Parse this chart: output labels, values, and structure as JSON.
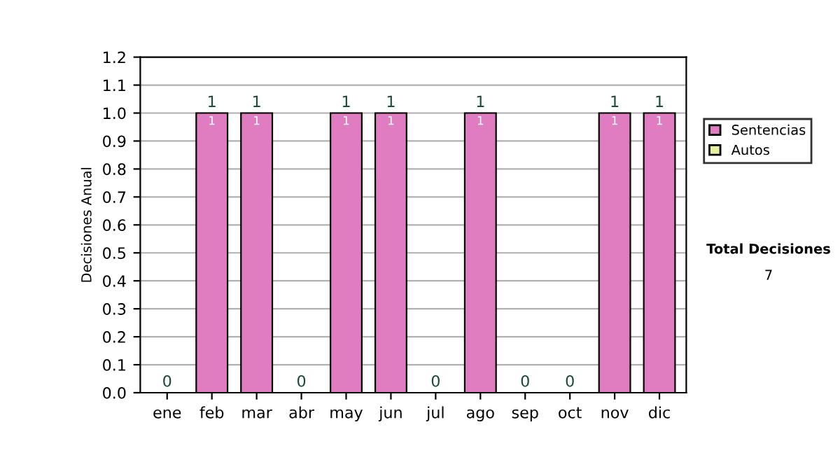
{
  "chart_data": {
    "type": "bar",
    "stacked": true,
    "ylabel": "Decisiones Anual",
    "categories": [
      "ene",
      "feb",
      "mar",
      "abr",
      "may",
      "jun",
      "jul",
      "ago",
      "sep",
      "oct",
      "nov",
      "dic"
    ],
    "series": [
      {
        "name": "Sentencias",
        "color": "#e07cc0",
        "values": [
          0,
          1,
          1,
          0,
          1,
          1,
          0,
          1,
          0,
          0,
          1,
          1
        ],
        "value_labels": [
          null,
          "1",
          "1",
          null,
          "1",
          "1",
          null,
          "1",
          null,
          null,
          "1",
          "1"
        ]
      },
      {
        "name": "Autos",
        "color": "#e8f0a0",
        "values": [
          0,
          0,
          0,
          0,
          0,
          0,
          0,
          0,
          0,
          0,
          0,
          0
        ]
      }
    ],
    "totals": [
      "0",
      "1",
      "1",
      "0",
      "1",
      "1",
      "0",
      "1",
      "0",
      "0",
      "1",
      "1"
    ],
    "ylim": [
      0,
      1.2
    ],
    "yticks": [
      {
        "value": 0,
        "label": "0.0"
      },
      {
        "value": 0.1,
        "label": "0.1"
      },
      {
        "value": 0.2,
        "label": "0.2"
      },
      {
        "value": 0.3,
        "label": "0.3"
      },
      {
        "value": 0.4,
        "label": "0.4"
      },
      {
        "value": 0.5,
        "label": "0.5"
      },
      {
        "value": 0.6,
        "label": "0.6"
      },
      {
        "value": 0.7,
        "label": "0.7"
      },
      {
        "value": 0.8,
        "label": "0.8"
      },
      {
        "value": 0.9,
        "label": "0.9"
      },
      {
        "value": 1.0,
        "label": "1.0"
      },
      {
        "value": 1.1,
        "label": "1.1"
      },
      {
        "value": 1.2,
        "label": "1.2"
      }
    ],
    "grid": "y",
    "legend": "right",
    "annotations": [
      "Total Decisiones",
      "7"
    ]
  }
}
